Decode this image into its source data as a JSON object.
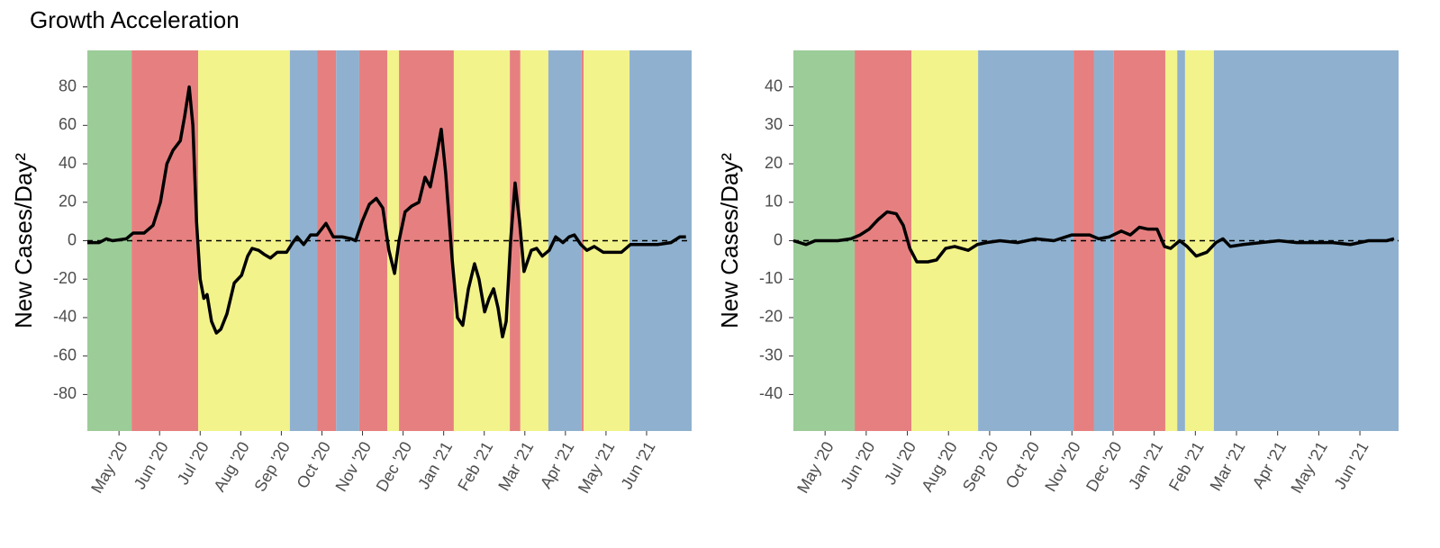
{
  "chart_data": [
    {
      "type": "line",
      "title": "Growth Acceleration",
      "y_label": "New Cases/Day²",
      "xlim": [
        -0.78,
        14.11
      ],
      "ylim": [
        -99,
        99
      ],
      "xticks": [
        {
          "value": 0,
          "label": "May '20"
        },
        {
          "value": 1,
          "label": "Jun '20"
        },
        {
          "value": 2,
          "label": "Jul '20"
        },
        {
          "value": 3,
          "label": "Aug '20"
        },
        {
          "value": 4,
          "label": "Sep '20"
        },
        {
          "value": 5,
          "label": "Oct '20"
        },
        {
          "value": 6,
          "label": "Nov '20"
        },
        {
          "value": 7,
          "label": "Dec '20"
        },
        {
          "value": 8,
          "label": "Jan '21"
        },
        {
          "value": 9,
          "label": "Feb '21"
        },
        {
          "value": 10,
          "label": "Mar '21"
        },
        {
          "value": 11,
          "label": "Apr '21"
        },
        {
          "value": 12,
          "label": "May '21"
        },
        {
          "value": 13,
          "label": "Jun '21"
        }
      ],
      "yticks": [
        80,
        60,
        40,
        20,
        0,
        -20,
        -40,
        -60,
        -80
      ],
      "reference_line": 0,
      "bands": [
        {
          "start": -0.78,
          "end": 0.31,
          "color": "#9ccc98"
        },
        {
          "start": 0.31,
          "end": 1.95,
          "color": "#e68080"
        },
        {
          "start": 1.95,
          "end": 4.21,
          "color": "#f3f38b"
        },
        {
          "start": 4.21,
          "end": 4.88,
          "color": "#8fb1cf"
        },
        {
          "start": 4.88,
          "end": 5.35,
          "color": "#e68080"
        },
        {
          "start": 5.35,
          "end": 5.92,
          "color": "#8fb1cf"
        },
        {
          "start": 5.92,
          "end": 6.61,
          "color": "#e68080"
        },
        {
          "start": 6.61,
          "end": 6.9,
          "color": "#f3f38b"
        },
        {
          "start": 6.9,
          "end": 8.25,
          "color": "#e68080"
        },
        {
          "start": 8.25,
          "end": 9.63,
          "color": "#f3f38b"
        },
        {
          "start": 9.63,
          "end": 9.89,
          "color": "#e68080"
        },
        {
          "start": 9.89,
          "end": 10.58,
          "color": "#f3f38b"
        },
        {
          "start": 10.58,
          "end": 11.4,
          "color": "#8fb1cf"
        },
        {
          "start": 11.4,
          "end": 11.45,
          "color": "#e68080"
        },
        {
          "start": 11.45,
          "end": 12.58,
          "color": "#f3f38b"
        },
        {
          "start": 12.58,
          "end": 14.11,
          "color": "#8fb1cf"
        }
      ],
      "x": [
        -0.78,
        -0.49,
        -0.31,
        -0.16,
        0.18,
        0.35,
        0.62,
        0.84,
        1.02,
        1.18,
        1.33,
        1.51,
        1.62,
        1.73,
        1.82,
        1.91,
        2.0,
        2.09,
        2.17,
        2.28,
        2.4,
        2.51,
        2.66,
        2.84,
        3.02,
        3.17,
        3.28,
        3.44,
        3.57,
        3.73,
        3.9,
        4.13,
        4.28,
        4.39,
        4.55,
        4.72,
        4.88,
        5.1,
        5.28,
        5.5,
        5.72,
        5.83,
        5.99,
        6.17,
        6.34,
        6.5,
        6.65,
        6.79,
        6.9,
        7.05,
        7.21,
        7.39,
        7.54,
        7.67,
        7.83,
        7.94,
        8.05,
        8.21,
        8.34,
        8.47,
        8.61,
        8.76,
        8.87,
        9.01,
        9.12,
        9.23,
        9.34,
        9.45,
        9.54,
        9.65,
        9.76,
        9.87,
        9.98,
        10.16,
        10.29,
        10.43,
        10.6,
        10.76,
        10.94,
        11.09,
        11.22,
        11.38,
        11.53,
        11.71,
        11.93,
        12.16,
        12.38,
        12.6,
        12.82,
        13.27,
        13.6,
        13.82,
        13.97
      ],
      "series": [
        {
          "color": "#000000",
          "values": [
            -1,
            -1,
            1,
            0,
            1,
            4,
            4,
            8,
            20,
            40,
            47,
            52,
            65,
            80,
            60,
            10,
            -20,
            -30,
            -28,
            -42,
            -48,
            -46,
            -38,
            -22,
            -18,
            -8,
            -4,
            -5,
            -7,
            -9,
            -6,
            -6,
            -1,
            2,
            -2,
            3,
            3,
            9,
            2,
            2,
            1,
            0,
            10,
            19,
            22,
            17,
            -5,
            -17,
            0,
            15,
            18,
            20,
            33,
            28,
            45,
            58,
            35,
            -10,
            -40,
            -44,
            -25,
            -12,
            -20,
            -37,
            -30,
            -25,
            -35,
            -50,
            -42,
            0,
            30,
            10,
            -16,
            -5,
            -4,
            -8,
            -5,
            2,
            -1,
            2,
            3,
            -2,
            -5,
            -3,
            -6,
            -6,
            -6,
            -2,
            -2,
            -2,
            -1,
            2,
            2
          ]
        }
      ]
    },
    {
      "type": "line",
      "y_label": "New Cases/Day²",
      "xlim": [
        -0.77,
        13.94
      ],
      "ylim": [
        -49.5,
        49.5
      ],
      "xticks": [
        {
          "value": 0,
          "label": "May '20"
        },
        {
          "value": 1,
          "label": "Jun '20"
        },
        {
          "value": 2,
          "label": "Jul '20"
        },
        {
          "value": 3,
          "label": "Aug '20"
        },
        {
          "value": 4,
          "label": "Sep '20"
        },
        {
          "value": 5,
          "label": "Oct '20"
        },
        {
          "value": 6,
          "label": "Nov '20"
        },
        {
          "value": 7,
          "label": "Dec '20"
        },
        {
          "value": 8,
          "label": "Jan '21"
        },
        {
          "value": 9,
          "label": "Feb '21"
        },
        {
          "value": 10,
          "label": "Mar '21"
        },
        {
          "value": 11,
          "label": "Apr '21"
        },
        {
          "value": 12,
          "label": "May '21"
        },
        {
          "value": 13,
          "label": "Jun '21"
        }
      ],
      "yticks": [
        40,
        30,
        20,
        10,
        0,
        -10,
        -20,
        -30,
        -40
      ],
      "reference_line": 0,
      "bands": [
        {
          "start": -0.77,
          "end": 0.72,
          "color": "#9ccc98"
        },
        {
          "start": 0.72,
          "end": 2.1,
          "color": "#e68080"
        },
        {
          "start": 2.1,
          "end": 3.72,
          "color": "#f3f38b"
        },
        {
          "start": 3.72,
          "end": 6.04,
          "color": "#8fb1cf"
        },
        {
          "start": 6.04,
          "end": 6.54,
          "color": "#e68080"
        },
        {
          "start": 6.54,
          "end": 7.02,
          "color": "#8fb1cf"
        },
        {
          "start": 7.02,
          "end": 8.27,
          "color": "#e68080"
        },
        {
          "start": 8.27,
          "end": 8.56,
          "color": "#f3f38b"
        },
        {
          "start": 8.56,
          "end": 8.75,
          "color": "#8fb1cf"
        },
        {
          "start": 8.75,
          "end": 9.45,
          "color": "#f3f38b"
        },
        {
          "start": 9.45,
          "end": 13.94,
          "color": "#8fb1cf"
        }
      ],
      "x": [
        -0.77,
        -0.46,
        -0.24,
        -0.02,
        0.31,
        0.63,
        0.85,
        1.07,
        1.29,
        1.51,
        1.73,
        1.9,
        2.06,
        2.23,
        2.5,
        2.71,
        2.93,
        3.15,
        3.48,
        3.7,
        3.92,
        4.25,
        4.68,
        5.12,
        5.56,
        6.0,
        6.43,
        6.65,
        6.91,
        7.2,
        7.42,
        7.64,
        7.85,
        8.07,
        8.25,
        8.4,
        8.62,
        8.8,
        9.02,
        9.28,
        9.5,
        9.67,
        9.85,
        10.16,
        10.59,
        11.03,
        11.47,
        11.9,
        12.34,
        12.77,
        13.21,
        13.65,
        13.83
      ],
      "series": [
        {
          "color": "#000000",
          "values": [
            0,
            -1,
            0,
            0,
            0,
            0.5,
            1.5,
            3,
            5.5,
            7.5,
            7,
            4,
            -2,
            -5.5,
            -5.5,
            -5,
            -2,
            -1.5,
            -2.5,
            -1,
            -0.5,
            0,
            -0.5,
            0.5,
            0,
            1.5,
            1.5,
            0.5,
            1,
            2.5,
            1.5,
            3.5,
            3,
            3,
            -1.5,
            -2,
            0,
            -1.5,
            -4,
            -3,
            -0.5,
            0.5,
            -1.5,
            -1,
            -0.5,
            0,
            -0.5,
            -0.5,
            -0.5,
            -1,
            0,
            0,
            0.5
          ]
        }
      ]
    }
  ]
}
